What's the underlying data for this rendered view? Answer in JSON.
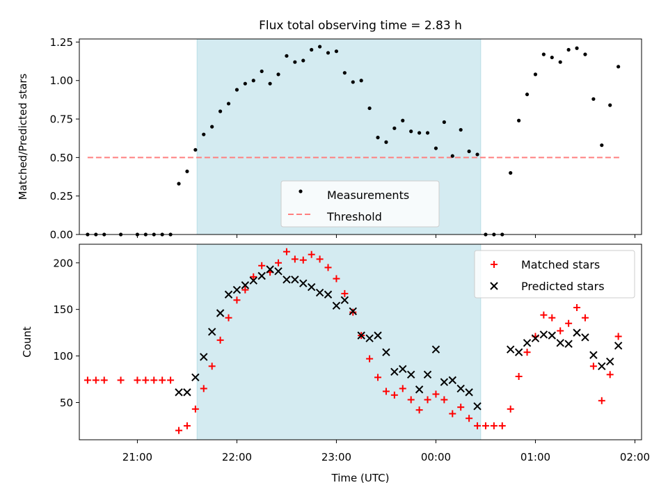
{
  "figure": {
    "title": "Flux total observing time = 2.83 h",
    "xlabel": "Time (UTC)"
  },
  "colors": {
    "shade": "#d4ebf1",
    "shade_edge": "#b9dde6",
    "measurements": "#000000",
    "threshold": "#ff7f7f",
    "matched": "#ff0000",
    "predicted": "#000000"
  },
  "chart_data": [
    {
      "type": "scatter",
      "panel": "top",
      "ylabel": "Matched/Predicted stars",
      "ylim": [
        0,
        1.27
      ],
      "yticks": [
        0,
        0.25,
        0.5,
        0.75,
        1.0,
        1.25
      ],
      "ytick_labels": [
        "0.00",
        "0.25",
        "0.50",
        "0.75",
        "1.00",
        "1.25"
      ],
      "xlim": [
        "20:25",
        "02:04"
      ],
      "shaded_span": [
        "21:36",
        "00:27"
      ],
      "legend": {
        "placement": "lower center",
        "entries": [
          "Measurements",
          "Threshold"
        ]
      },
      "threshold": {
        "name": "Threshold",
        "value": 0.5,
        "x": [
          "20:30",
          "01:52"
        ]
      },
      "series": [
        {
          "name": "Measurements",
          "marker": "dot",
          "x": [
            "20:30",
            "20:35",
            "20:40",
            "20:50",
            "21:00",
            "21:05",
            "21:10",
            "21:15",
            "21:20",
            "21:25",
            "21:30",
            "21:35",
            "21:40",
            "21:45",
            "21:50",
            "21:55",
            "22:00",
            "22:05",
            "22:10",
            "22:15",
            "22:20",
            "22:25",
            "22:30",
            "22:35",
            "22:40",
            "22:45",
            "22:50",
            "22:55",
            "23:00",
            "23:05",
            "23:10",
            "23:15",
            "23:20",
            "23:25",
            "23:30",
            "23:35",
            "23:40",
            "23:45",
            "23:50",
            "23:55",
            "00:00",
            "00:05",
            "00:10",
            "00:15",
            "00:20",
            "00:25",
            "00:30",
            "00:35",
            "00:40",
            "00:45",
            "00:50",
            "00:55",
            "01:00",
            "01:05",
            "01:10",
            "01:15",
            "01:20",
            "01:25",
            "01:30",
            "01:35",
            "01:40",
            "01:45",
            "01:50",
            "01:55"
          ],
          "y": [
            0,
            0,
            0,
            0,
            0,
            0,
            0,
            0,
            0,
            0.33,
            0.41,
            0.55,
            0.65,
            0.7,
            0.8,
            0.85,
            0.94,
            0.98,
            1.0,
            1.06,
            0.98,
            1.04,
            1.16,
            1.12,
            1.13,
            1.2,
            1.22,
            1.18,
            1.19,
            1.05,
            0.99,
            1.0,
            0.82,
            0.63,
            0.6,
            0.69,
            0.74,
            0.67,
            0.66,
            0.66,
            0.56,
            0.73,
            0.51,
            0.68,
            0.54,
            0.52,
            0,
            0,
            0,
            0.4,
            0.74,
            0.91,
            1.04,
            1.17,
            1.15,
            1.12,
            1.2,
            1.21,
            1.17,
            0.88,
            0.58,
            0.84,
            1.09,
            null
          ]
        }
      ]
    },
    {
      "type": "scatter",
      "panel": "bottom",
      "xlabel": "Time (UTC)",
      "ylabel": "Count",
      "ylim": [
        10,
        220
      ],
      "yticks": [
        50,
        100,
        150,
        200
      ],
      "ytick_labels": [
        "50",
        "100",
        "150",
        "200"
      ],
      "xticks": [
        "21:00",
        "22:00",
        "23:00",
        "00:00",
        "01:00",
        "02:00"
      ],
      "xlim": [
        "20:25",
        "02:04"
      ],
      "shaded_span": [
        "21:36",
        "00:27"
      ],
      "legend": {
        "placement": "upper right",
        "entries": [
          "Matched stars",
          "Predicted stars"
        ]
      },
      "series": [
        {
          "name": "Matched stars",
          "marker": "plus",
          "x": [
            "20:30",
            "20:35",
            "20:40",
            "20:50",
            "21:00",
            "21:05",
            "21:10",
            "21:15",
            "21:20",
            "21:25",
            "21:30",
            "21:35",
            "21:40",
            "21:45",
            "21:50",
            "21:55",
            "22:00",
            "22:05",
            "22:10",
            "22:15",
            "22:20",
            "22:25",
            "22:30",
            "22:35",
            "22:40",
            "22:45",
            "22:50",
            "22:55",
            "23:00",
            "23:05",
            "23:10",
            "23:15",
            "23:20",
            "23:25",
            "23:30",
            "23:35",
            "23:40",
            "23:45",
            "23:50",
            "23:55",
            "00:00",
            "00:05",
            "00:10",
            "00:15",
            "00:20",
            "00:25",
            "00:30",
            "00:35",
            "00:40",
            "00:45",
            "00:50",
            "00:55",
            "01:00",
            "01:05",
            "01:10",
            "01:15",
            "01:20",
            "01:25",
            "01:30",
            "01:35",
            "01:40",
            "01:45",
            "01:50"
          ],
          "y": [
            74,
            74,
            74,
            74,
            74,
            74,
            74,
            74,
            74,
            20,
            25,
            43,
            65,
            89,
            117,
            141,
            160,
            171,
            185,
            197,
            190,
            200,
            212,
            204,
            203,
            209,
            204,
            195,
            183,
            167,
            147,
            122,
            97,
            77,
            62,
            58,
            65,
            53,
            42,
            53,
            59,
            53,
            38,
            45,
            33,
            25,
            25,
            25,
            25,
            43,
            78,
            104,
            121,
            144,
            141,
            127,
            135,
            152,
            141,
            89,
            52,
            80,
            121
          ]
        },
        {
          "name": "Predicted stars",
          "marker": "x",
          "x": [
            "21:25",
            "21:30",
            "21:35",
            "21:40",
            "21:45",
            "21:50",
            "21:55",
            "22:00",
            "22:05",
            "22:10",
            "22:15",
            "22:20",
            "22:25",
            "22:30",
            "22:35",
            "22:40",
            "22:45",
            "22:50",
            "22:55",
            "23:00",
            "23:05",
            "23:10",
            "23:15",
            "23:20",
            "23:25",
            "23:30",
            "23:35",
            "23:40",
            "23:45",
            "23:50",
            "23:55",
            "00:00",
            "00:05",
            "00:10",
            "00:15",
            "00:20",
            "00:25",
            "00:45",
            "00:50",
            "00:55",
            "01:00",
            "01:05",
            "01:10",
            "01:15",
            "01:20",
            "01:25",
            "01:30",
            "01:35",
            "01:40",
            "01:45",
            "01:50"
          ],
          "y": [
            61,
            61,
            77,
            99,
            126,
            146,
            166,
            171,
            176,
            181,
            186,
            193,
            191,
            182,
            182,
            178,
            174,
            168,
            166,
            154,
            160,
            148,
            122,
            119,
            122,
            104,
            83,
            86,
            80,
            64,
            80,
            107,
            72,
            74,
            65,
            61,
            46,
            107,
            104,
            114,
            119,
            123,
            122,
            114,
            113,
            125,
            120,
            101,
            89,
            94,
            111
          ]
        }
      ]
    }
  ]
}
